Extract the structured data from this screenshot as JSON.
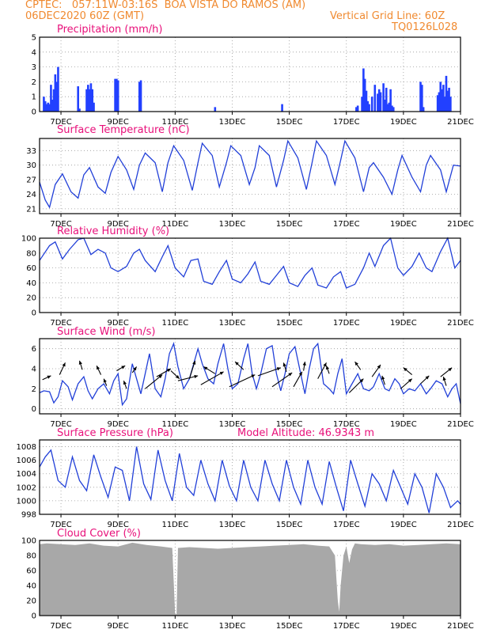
{
  "header": {
    "line1_left": "CPTEC:   057:11W-03:16S  BOA VISTA DO RAMOS (AM)",
    "line2_left": "06DEC2020 60Z (GMT)",
    "line2_right": "Vertical Grid Line: 60Z",
    "line3_right": "TQ0126L028"
  },
  "colors": {
    "header": "#f08a30",
    "titles": "#e8107a",
    "series": "#2240d8",
    "bars": "#2240ff",
    "cloud": "#a8a8a8"
  },
  "chart_data": [
    {
      "id": "precip",
      "type": "bar",
      "title": "Precipitation (mm/h)",
      "ylim": [
        0,
        5
      ],
      "yticks": [
        0,
        1,
        2,
        3,
        4,
        5
      ],
      "xlim": [
        6.25,
        21
      ],
      "xticks": [
        7,
        9,
        11,
        13,
        15,
        17,
        19,
        21
      ],
      "xtick_labels": [
        "7DEC",
        "9DEC",
        "11DEC",
        "13DEC",
        "15DEC",
        "17DEC",
        "19DEC",
        "21DEC"
      ],
      "x": [
        6.4,
        6.45,
        6.5,
        6.55,
        6.6,
        6.65,
        6.7,
        6.75,
        6.8,
        6.85,
        6.9,
        7.6,
        7.65,
        7.9,
        7.95,
        8.0,
        8.05,
        8.1,
        8.15,
        8.9,
        8.95,
        9.0,
        9.75,
        9.8,
        12.4,
        14.75,
        17.35,
        17.4,
        17.55,
        17.6,
        17.65,
        17.7,
        17.75,
        17.8,
        17.9,
        18.0,
        18.1,
        18.15,
        18.2,
        18.3,
        18.35,
        18.4,
        18.45,
        18.5,
        18.55,
        18.6,
        18.65,
        19.6,
        19.65,
        19.7,
        20.2,
        20.25,
        20.3,
        20.35,
        20.4,
        20.45,
        20.5,
        20.55,
        20.6,
        20.65
      ],
      "values": [
        1.0,
        0.7,
        0.5,
        0.6,
        0.5,
        1.8,
        0.8,
        1.5,
        2.5,
        2.0,
        3.0,
        1.7,
        0.2,
        1.5,
        1.8,
        1.5,
        1.9,
        1.5,
        0.6,
        2.2,
        2.2,
        2.1,
        2.0,
        2.1,
        0.3,
        0.5,
        0.3,
        0.4,
        1.0,
        2.9,
        2.2,
        1.4,
        0.7,
        0.5,
        1.0,
        1.8,
        1.2,
        1.5,
        1.3,
        1.9,
        0.8,
        1.6,
        0.5,
        0.6,
        1.5,
        0.4,
        0.3,
        2.0,
        1.8,
        0.3,
        1.1,
        1.3,
        2.0,
        1.5,
        1.8,
        1.0,
        2.4,
        1.4,
        1.6,
        1.0
      ]
    },
    {
      "id": "temp",
      "type": "line",
      "title": "Surface Temperature (nC)",
      "ylim": [
        20,
        35.5
      ],
      "yticks": [
        21,
        24,
        27,
        30,
        33
      ],
      "xlim": [
        6.25,
        21
      ],
      "xticks": [
        7,
        9,
        11,
        13,
        15,
        17,
        19,
        21
      ],
      "xtick_labels": [
        "7DEC",
        "9DEC",
        "11DEC",
        "13DEC",
        "15DEC",
        "17DEC",
        "19DEC",
        "21DEC"
      ],
      "x": [
        6.25,
        6.45,
        6.6,
        6.8,
        7.05,
        7.35,
        7.6,
        7.8,
        8.0,
        8.3,
        8.55,
        8.75,
        9.0,
        9.3,
        9.55,
        9.75,
        9.95,
        10.3,
        10.55,
        10.75,
        10.95,
        11.3,
        11.6,
        11.8,
        11.95,
        12.3,
        12.55,
        12.8,
        12.95,
        13.3,
        13.6,
        13.8,
        13.95,
        14.3,
        14.55,
        14.8,
        14.95,
        15.3,
        15.6,
        15.8,
        15.95,
        16.3,
        16.6,
        16.8,
        16.95,
        17.3,
        17.6,
        17.8,
        17.95,
        18.3,
        18.6,
        18.8,
        18.95,
        19.3,
        19.6,
        19.8,
        19.95,
        20.3,
        20.5,
        20.75,
        21.0
      ],
      "values": [
        26.5,
        22.8,
        21.3,
        26.0,
        28.2,
        24.5,
        23.2,
        28.0,
        29.5,
        25.5,
        24.2,
        28.5,
        31.8,
        29.0,
        25.0,
        30.0,
        32.5,
        30.5,
        24.5,
        30.5,
        34.0,
        31.0,
        24.8,
        30.5,
        34.5,
        32.0,
        25.5,
        30.5,
        34.0,
        32.0,
        26.0,
        29.5,
        34.0,
        32.0,
        25.5,
        31.0,
        35.0,
        31.5,
        25.0,
        30.5,
        35.0,
        32.0,
        26.0,
        31.0,
        35.0,
        31.5,
        24.5,
        29.5,
        30.5,
        27.5,
        24.0,
        29.0,
        32.0,
        27.5,
        24.5,
        30.0,
        32.0,
        29.0,
        24.5,
        30.0,
        29.8
      ]
    },
    {
      "id": "rh",
      "type": "line",
      "title": "Relative Humidity (%)",
      "ylim": [
        0,
        100
      ],
      "yticks": [
        0,
        20,
        40,
        60,
        80,
        100
      ],
      "xlim": [
        6.25,
        21
      ],
      "xticks": [
        7,
        9,
        11,
        13,
        15,
        17,
        19,
        21
      ],
      "xtick_labels": [
        "7DEC",
        "9DEC",
        "11DEC",
        "13DEC",
        "15DEC",
        "17DEC",
        "19DEC",
        "21DEC"
      ],
      "x": [
        6.25,
        6.6,
        6.8,
        7.05,
        7.3,
        7.6,
        7.8,
        8.05,
        8.3,
        8.55,
        8.75,
        9.0,
        9.3,
        9.55,
        9.75,
        9.95,
        10.3,
        10.55,
        10.75,
        11.0,
        11.3,
        11.55,
        11.8,
        12.0,
        12.3,
        12.55,
        12.8,
        13.0,
        13.3,
        13.55,
        13.8,
        14.0,
        14.3,
        14.55,
        14.8,
        15.0,
        15.3,
        15.55,
        15.8,
        16.0,
        16.3,
        16.55,
        16.8,
        17.0,
        17.3,
        17.6,
        17.8,
        18.0,
        18.3,
        18.55,
        18.8,
        19.0,
        19.3,
        19.55,
        19.8,
        20.0,
        20.3,
        20.55,
        20.8,
        21.0
      ],
      "values": [
        70,
        90,
        95,
        72,
        85,
        98,
        100,
        78,
        85,
        80,
        60,
        55,
        62,
        80,
        85,
        70,
        55,
        75,
        90,
        60,
        48,
        70,
        72,
        42,
        38,
        55,
        70,
        45,
        40,
        52,
        68,
        42,
        38,
        50,
        62,
        40,
        35,
        50,
        60,
        37,
        33,
        48,
        55,
        33,
        38,
        60,
        80,
        62,
        90,
        100,
        60,
        50,
        62,
        80,
        60,
        55,
        82,
        100,
        60,
        70
      ]
    },
    {
      "id": "wind",
      "type": "line",
      "title": "Surface Wind (m/s)",
      "ylim": [
        -0.5,
        7
      ],
      "yticks": [
        0,
        2,
        4,
        6
      ],
      "xlim": [
        6.25,
        21
      ],
      "xticks": [
        7,
        9,
        11,
        13,
        15,
        17,
        19,
        21
      ],
      "xtick_labels": [
        "7DEC",
        "9DEC",
        "11DEC",
        "13DEC",
        "15DEC",
        "17DEC",
        "19DEC",
        "21DEC"
      ],
      "x": [
        6.25,
        6.4,
        6.6,
        6.75,
        6.9,
        7.05,
        7.25,
        7.4,
        7.6,
        7.8,
        7.95,
        8.1,
        8.3,
        8.5,
        8.7,
        8.85,
        9.0,
        9.15,
        9.3,
        9.5,
        9.65,
        9.8,
        9.95,
        10.1,
        10.3,
        10.5,
        10.65,
        10.8,
        10.95,
        11.1,
        11.3,
        11.5,
        11.65,
        11.8,
        11.95,
        12.15,
        12.35,
        12.5,
        12.7,
        12.85,
        13.0,
        13.2,
        13.4,
        13.55,
        13.7,
        13.85,
        14.0,
        14.2,
        14.4,
        14.55,
        14.7,
        14.85,
        15.0,
        15.2,
        15.4,
        15.55,
        15.7,
        15.85,
        16.0,
        16.2,
        16.4,
        16.55,
        16.7,
        16.85,
        17.0,
        17.2,
        17.4,
        17.6,
        17.8,
        17.95,
        18.15,
        18.35,
        18.5,
        18.7,
        18.85,
        19.0,
        19.2,
        19.4,
        19.6,
        19.8,
        19.95,
        20.15,
        20.35,
        20.55,
        20.7,
        20.85,
        21.0
      ],
      "values": [
        1.6,
        1.8,
        1.7,
        0.6,
        1.2,
        2.8,
        2.2,
        0.9,
        2.5,
        3.2,
        1.8,
        1.0,
        2.0,
        2.5,
        1.5,
        2.8,
        3.5,
        0.4,
        1.0,
        4.5,
        3.0,
        1.5,
        3.5,
        5.5,
        2.0,
        1.2,
        3.0,
        5.5,
        6.5,
        4.2,
        2.0,
        3.0,
        4.5,
        6.0,
        4.5,
        3.0,
        2.5,
        4.5,
        6.5,
        4.0,
        2.0,
        2.5,
        5.0,
        6.5,
        3.5,
        2.0,
        3.5,
        6.0,
        6.3,
        3.5,
        1.8,
        3.5,
        5.5,
        6.2,
        3.5,
        1.5,
        4.0,
        6.0,
        6.5,
        2.5,
        2.0,
        1.5,
        3.5,
        5.0,
        1.5,
        2.5,
        3.5,
        2.0,
        1.8,
        2.2,
        3.5,
        2.0,
        1.8,
        3.0,
        2.5,
        1.5,
        2.0,
        1.8,
        2.5,
        1.5,
        2.0,
        2.8,
        2.5,
        1.2,
        2.0,
        2.5,
        0.5
      ],
      "vectors": [
        {
          "x": 6.35,
          "y": 2.9,
          "dx": 0.3,
          "dy": 0.4
        },
        {
          "x": 6.95,
          "y": 3.4,
          "dx": 0.2,
          "dy": 1.2
        },
        {
          "x": 7.75,
          "y": 3.9,
          "dx": -0.1,
          "dy": 0.9
        },
        {
          "x": 8.4,
          "y": 3.4,
          "dx": -0.15,
          "dy": 0.9
        },
        {
          "x": 8.95,
          "y": 3.8,
          "dx": 0.3,
          "dy": 0.5
        },
        {
          "x": 8.6,
          "y": 2.3,
          "dx": -0.1,
          "dy": 0.7
        },
        {
          "x": 9.3,
          "y": 2.0,
          "dx": -0.1,
          "dy": 0.8
        },
        {
          "x": 9.5,
          "y": 3.6,
          "dx": 0.15,
          "dy": 0.6
        },
        {
          "x": 9.95,
          "y": 2.0,
          "dx": 0.6,
          "dy": 1.4
        },
        {
          "x": 10.35,
          "y": 3.2,
          "dx": 0.5,
          "dy": 0.8
        },
        {
          "x": 10.85,
          "y": 3.8,
          "dx": 0.3,
          "dy": -0.8
        },
        {
          "x": 11.1,
          "y": 2.8,
          "dx": 0.7,
          "dy": 0.5
        },
        {
          "x": 11.5,
          "y": 3.0,
          "dx": 0.2,
          "dy": 1.8
        },
        {
          "x": 11.9,
          "y": 2.4,
          "dx": 0.8,
          "dy": 1.3
        },
        {
          "x": 12.4,
          "y": 3.5,
          "dx": -0.4,
          "dy": 0.7
        },
        {
          "x": 12.9,
          "y": 2.2,
          "dx": 0.9,
          "dy": 1.2
        },
        {
          "x": 13.4,
          "y": 3.9,
          "dx": -0.3,
          "dy": 0.8
        },
        {
          "x": 13.9,
          "y": 3.3,
          "dx": 0.8,
          "dy": 0.8
        },
        {
          "x": 14.4,
          "y": 2.2,
          "dx": 0.7,
          "dy": 1.4
        },
        {
          "x": 14.9,
          "y": 3.7,
          "dx": -0.1,
          "dy": 0.9
        },
        {
          "x": 15.15,
          "y": 2.2,
          "dx": 0.3,
          "dy": 1.5
        },
        {
          "x": 15.5,
          "y": 3.8,
          "dx": 0.05,
          "dy": 0.9
        },
        {
          "x": 16.0,
          "y": 3.0,
          "dx": 0.3,
          "dy": 1.6
        },
        {
          "x": 16.4,
          "y": 3.5,
          "dx": -0.1,
          "dy": 0.8
        },
        {
          "x": 17.1,
          "y": 1.6,
          "dx": 0.5,
          "dy": 1.4
        },
        {
          "x": 17.5,
          "y": 3.9,
          "dx": -0.2,
          "dy": 0.8
        },
        {
          "x": 17.9,
          "y": 3.2,
          "dx": 0.3,
          "dy": 1.2
        },
        {
          "x": 18.35,
          "y": 2.4,
          "dx": -0.1,
          "dy": 0.9
        },
        {
          "x": 18.9,
          "y": 2.0,
          "dx": 0.4,
          "dy": 1.0
        },
        {
          "x": 19.3,
          "y": 3.4,
          "dx": -0.3,
          "dy": 0.7
        },
        {
          "x": 19.6,
          "y": 2.5,
          "dx": 0.3,
          "dy": 0.8
        },
        {
          "x": 20.3,
          "y": 3.2,
          "dx": 0.4,
          "dy": 0.9
        },
        {
          "x": 20.5,
          "y": 2.3,
          "dx": -0.1,
          "dy": 0.9
        }
      ]
    },
    {
      "id": "pres",
      "type": "line",
      "title": "Surface Pressure (hPa)",
      "annotation": "Model Altitude: 46.9343 m",
      "ylim": [
        998,
        1009
      ],
      "yticks": [
        998,
        1000,
        1002,
        1004,
        1006,
        1008
      ],
      "xlim": [
        6.25,
        21
      ],
      "xticks": [
        7,
        9,
        11,
        13,
        15,
        17,
        19,
        21
      ],
      "xtick_labels": [
        "7DEC",
        "9DEC",
        "11DEC",
        "13DEC",
        "15DEC",
        "17DEC",
        "19DEC",
        "21DEC"
      ],
      "x": [
        6.25,
        6.45,
        6.65,
        6.9,
        7.15,
        7.4,
        7.65,
        7.9,
        8.15,
        8.4,
        8.65,
        8.9,
        9.15,
        9.4,
        9.65,
        9.9,
        10.15,
        10.4,
        10.65,
        10.9,
        11.15,
        11.4,
        11.65,
        11.9,
        12.15,
        12.4,
        12.65,
        12.9,
        13.15,
        13.4,
        13.65,
        13.9,
        14.15,
        14.4,
        14.65,
        14.9,
        15.15,
        15.4,
        15.65,
        15.9,
        16.15,
        16.4,
        16.65,
        16.9,
        17.15,
        17.4,
        17.65,
        17.9,
        18.15,
        18.4,
        18.65,
        18.9,
        19.15,
        19.4,
        19.65,
        19.9,
        20.15,
        20.4,
        20.65,
        20.9,
        21.0
      ],
      "values": [
        1005.0,
        1006.5,
        1007.5,
        1003.0,
        1002.0,
        1006.5,
        1003.0,
        1001.5,
        1006.8,
        1003.5,
        1000.5,
        1005.0,
        1004.5,
        1000.0,
        1008.0,
        1002.5,
        1000.2,
        1007.5,
        1003.0,
        1000.0,
        1007.0,
        1002.0,
        1000.8,
        1006.0,
        1002.5,
        1000.0,
        1006.0,
        1002.2,
        1000.0,
        1006.0,
        1002.0,
        1000.0,
        1006.0,
        1002.5,
        1000.0,
        1006.0,
        1002.0,
        999.5,
        1006.0,
        1002.0,
        999.5,
        1005.8,
        1002.0,
        998.5,
        1006.0,
        1002.5,
        999.2,
        1004.0,
        1002.5,
        1000.0,
        1004.5,
        1002.0,
        999.5,
        1004.0,
        1002.0,
        998.2,
        1004.0,
        1002.0,
        999.0,
        1000.0,
        999.5
      ]
    },
    {
      "id": "cloud",
      "type": "area",
      "title": "Cloud Cover (%)",
      "ylim": [
        0,
        100
      ],
      "yticks": [
        0,
        20,
        40,
        60,
        80,
        100
      ],
      "xlim": [
        6.25,
        21
      ],
      "xticks": [
        7,
        9,
        11,
        13,
        15,
        17,
        19,
        21
      ],
      "xtick_labels": [
        "7DEC",
        "9DEC",
        "11DEC",
        "13DEC",
        "15DEC",
        "17DEC",
        "19DEC",
        "21DEC"
      ],
      "x": [
        6.25,
        6.5,
        7.0,
        7.5,
        8.0,
        8.5,
        9.0,
        9.5,
        10.0,
        10.5,
        10.9,
        11.0,
        11.05,
        11.1,
        11.5,
        12.0,
        12.5,
        13.0,
        13.5,
        14.0,
        14.5,
        15.0,
        15.5,
        16.0,
        16.4,
        16.6,
        16.7,
        16.75,
        16.8,
        16.9,
        17.0,
        17.1,
        17.2,
        17.3,
        17.5,
        18.0,
        18.5,
        19.0,
        19.5,
        20.0,
        20.5,
        21.0
      ],
      "values": [
        95,
        96,
        95,
        94,
        96,
        93,
        92,
        97,
        94,
        92,
        90,
        2,
        2,
        90,
        91,
        90,
        89,
        90,
        91,
        92,
        93,
        94,
        95,
        93,
        92,
        80,
        20,
        5,
        40,
        80,
        92,
        70,
        88,
        96,
        95,
        94,
        95,
        93,
        94,
        95,
        96,
        95
      ]
    }
  ]
}
